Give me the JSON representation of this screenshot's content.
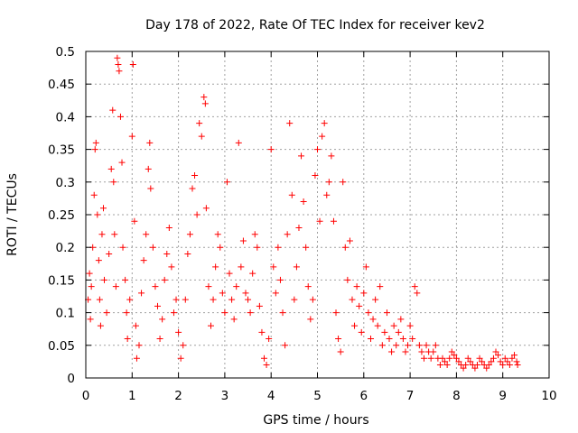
{
  "chart_data": {
    "type": "scatter",
    "title": "Day 178 of 2022, Rate Of TEC Index for receiver kev2",
    "xlabel": "GPS time / hours",
    "ylabel": "ROTI / TECUs",
    "xlim": [
      0,
      10
    ],
    "ylim": [
      0,
      0.5
    ],
    "x_ticks": [
      0,
      1,
      2,
      3,
      4,
      5,
      6,
      7,
      8,
      9,
      10
    ],
    "y_ticks": [
      0,
      0.05,
      0.1,
      0.15,
      0.2,
      0.25,
      0.3,
      0.35,
      0.4,
      0.45,
      0.5
    ],
    "x_tick_labels": [
      "0",
      "1",
      "2",
      "3",
      "4",
      "5",
      "6",
      "7",
      "8",
      "9",
      "10"
    ],
    "y_tick_labels": [
      "0",
      "0.05",
      "0.1",
      "0.15",
      "0.2",
      "0.25",
      "0.3",
      "0.35",
      "0.4",
      "0.45",
      "0.5"
    ],
    "grid": true,
    "marker": "plus",
    "color": "#ff0000",
    "series": [
      {
        "name": "kev2",
        "points": [
          [
            0.05,
            0.12
          ],
          [
            0.08,
            0.16
          ],
          [
            0.1,
            0.09
          ],
          [
            0.12,
            0.14
          ],
          [
            0.15,
            0.2
          ],
          [
            0.18,
            0.28
          ],
          [
            0.2,
            0.35
          ],
          [
            0.22,
            0.36
          ],
          [
            0.25,
            0.25
          ],
          [
            0.28,
            0.18
          ],
          [
            0.3,
            0.12
          ],
          [
            0.32,
            0.08
          ],
          [
            0.35,
            0.22
          ],
          [
            0.38,
            0.26
          ],
          [
            0.4,
            0.15
          ],
          [
            0.45,
            0.1
          ],
          [
            0.5,
            0.19
          ],
          [
            0.55,
            0.32
          ],
          [
            0.58,
            0.41
          ],
          [
            0.6,
            0.3
          ],
          [
            0.62,
            0.22
          ],
          [
            0.65,
            0.14
          ],
          [
            0.68,
            0.49
          ],
          [
            0.7,
            0.48
          ],
          [
            0.72,
            0.47
          ],
          [
            0.75,
            0.4
          ],
          [
            0.78,
            0.33
          ],
          [
            0.8,
            0.2
          ],
          [
            0.85,
            0.15
          ],
          [
            0.88,
            0.1
          ],
          [
            0.9,
            0.06
          ],
          [
            0.95,
            0.12
          ],
          [
            1.0,
            0.37
          ],
          [
            1.02,
            0.48
          ],
          [
            1.05,
            0.24
          ],
          [
            1.08,
            0.08
          ],
          [
            1.1,
            0.03
          ],
          [
            1.15,
            0.05
          ],
          [
            1.2,
            0.13
          ],
          [
            1.25,
            0.18
          ],
          [
            1.3,
            0.22
          ],
          [
            1.35,
            0.32
          ],
          [
            1.38,
            0.36
          ],
          [
            1.4,
            0.29
          ],
          [
            1.45,
            0.2
          ],
          [
            1.5,
            0.14
          ],
          [
            1.55,
            0.11
          ],
          [
            1.6,
            0.06
          ],
          [
            1.65,
            0.09
          ],
          [
            1.7,
            0.15
          ],
          [
            1.75,
            0.19
          ],
          [
            1.8,
            0.23
          ],
          [
            1.85,
            0.17
          ],
          [
            1.9,
            0.1
          ],
          [
            1.95,
            0.12
          ],
          [
            2.0,
            0.07
          ],
          [
            2.05,
            0.03
          ],
          [
            2.1,
            0.05
          ],
          [
            2.15,
            0.12
          ],
          [
            2.2,
            0.19
          ],
          [
            2.25,
            0.22
          ],
          [
            2.3,
            0.29
          ],
          [
            2.35,
            0.31
          ],
          [
            2.4,
            0.25
          ],
          [
            2.45,
            0.39
          ],
          [
            2.5,
            0.37
          ],
          [
            2.55,
            0.43
          ],
          [
            2.58,
            0.42
          ],
          [
            2.6,
            0.26
          ],
          [
            2.65,
            0.14
          ],
          [
            2.7,
            0.08
          ],
          [
            2.75,
            0.12
          ],
          [
            2.8,
            0.17
          ],
          [
            2.85,
            0.22
          ],
          [
            2.9,
            0.2
          ],
          [
            2.95,
            0.13
          ],
          [
            3.0,
            0.1
          ],
          [
            3.05,
            0.3
          ],
          [
            3.1,
            0.16
          ],
          [
            3.15,
            0.12
          ],
          [
            3.2,
            0.09
          ],
          [
            3.25,
            0.14
          ],
          [
            3.3,
            0.36
          ],
          [
            3.35,
            0.17
          ],
          [
            3.4,
            0.21
          ],
          [
            3.45,
            0.13
          ],
          [
            3.5,
            0.12
          ],
          [
            3.55,
            0.1
          ],
          [
            3.6,
            0.16
          ],
          [
            3.65,
            0.22
          ],
          [
            3.7,
            0.2
          ],
          [
            3.75,
            0.11
          ],
          [
            3.8,
            0.07
          ],
          [
            3.85,
            0.03
          ],
          [
            3.9,
            0.02
          ],
          [
            3.95,
            0.06
          ],
          [
            4.0,
            0.35
          ],
          [
            4.05,
            0.17
          ],
          [
            4.1,
            0.13
          ],
          [
            4.15,
            0.2
          ],
          [
            4.2,
            0.15
          ],
          [
            4.25,
            0.1
          ],
          [
            4.3,
            0.05
          ],
          [
            4.35,
            0.22
          ],
          [
            4.4,
            0.39
          ],
          [
            4.45,
            0.28
          ],
          [
            4.5,
            0.12
          ],
          [
            4.55,
            0.17
          ],
          [
            4.6,
            0.23
          ],
          [
            4.65,
            0.34
          ],
          [
            4.7,
            0.27
          ],
          [
            4.75,
            0.2
          ],
          [
            4.8,
            0.14
          ],
          [
            4.85,
            0.09
          ],
          [
            4.9,
            0.12
          ],
          [
            4.95,
            0.31
          ],
          [
            5.0,
            0.35
          ],
          [
            5.05,
            0.24
          ],
          [
            5.1,
            0.37
          ],
          [
            5.15,
            0.39
          ],
          [
            5.2,
            0.28
          ],
          [
            5.25,
            0.3
          ],
          [
            5.3,
            0.34
          ],
          [
            5.35,
            0.24
          ],
          [
            5.4,
            0.1
          ],
          [
            5.45,
            0.06
          ],
          [
            5.5,
            0.04
          ],
          [
            5.55,
            0.3
          ],
          [
            5.6,
            0.2
          ],
          [
            5.65,
            0.15
          ],
          [
            5.7,
            0.21
          ],
          [
            5.75,
            0.12
          ],
          [
            5.8,
            0.08
          ],
          [
            5.85,
            0.14
          ],
          [
            5.9,
            0.11
          ],
          [
            5.95,
            0.07
          ],
          [
            6.0,
            0.13
          ],
          [
            6.05,
            0.17
          ],
          [
            6.1,
            0.1
          ],
          [
            6.15,
            0.06
          ],
          [
            6.2,
            0.09
          ],
          [
            6.25,
            0.12
          ],
          [
            6.3,
            0.08
          ],
          [
            6.35,
            0.14
          ],
          [
            6.4,
            0.05
          ],
          [
            6.45,
            0.07
          ],
          [
            6.5,
            0.1
          ],
          [
            6.55,
            0.06
          ],
          [
            6.6,
            0.04
          ],
          [
            6.65,
            0.08
          ],
          [
            6.7,
            0.05
          ],
          [
            6.75,
            0.07
          ],
          [
            6.8,
            0.09
          ],
          [
            6.85,
            0.06
          ],
          [
            6.9,
            0.04
          ],
          [
            6.95,
            0.05
          ],
          [
            7.0,
            0.08
          ],
          [
            7.05,
            0.06
          ],
          [
            7.1,
            0.14
          ],
          [
            7.15,
            0.13
          ],
          [
            7.2,
            0.05
          ],
          [
            7.25,
            0.04
          ],
          [
            7.3,
            0.03
          ],
          [
            7.35,
            0.05
          ],
          [
            7.4,
            0.04
          ],
          [
            7.45,
            0.03
          ],
          [
            7.5,
            0.04
          ],
          [
            7.55,
            0.05
          ],
          [
            7.6,
            0.03
          ],
          [
            7.65,
            0.02
          ],
          [
            7.7,
            0.03
          ],
          [
            7.75,
            0.025
          ],
          [
            7.8,
            0.02
          ],
          [
            7.85,
            0.03
          ],
          [
            7.9,
            0.04
          ],
          [
            7.95,
            0.035
          ],
          [
            8.0,
            0.03
          ],
          [
            8.05,
            0.025
          ],
          [
            8.1,
            0.02
          ],
          [
            8.15,
            0.015
          ],
          [
            8.2,
            0.02
          ],
          [
            8.25,
            0.03
          ],
          [
            8.3,
            0.025
          ],
          [
            8.35,
            0.02
          ],
          [
            8.4,
            0.015
          ],
          [
            8.45,
            0.02
          ],
          [
            8.5,
            0.03
          ],
          [
            8.55,
            0.025
          ],
          [
            8.6,
            0.02
          ],
          [
            8.65,
            0.015
          ],
          [
            8.7,
            0.02
          ],
          [
            8.75,
            0.025
          ],
          [
            8.8,
            0.03
          ],
          [
            8.85,
            0.04
          ],
          [
            8.9,
            0.035
          ],
          [
            8.95,
            0.025
          ],
          [
            9.0,
            0.02
          ],
          [
            9.05,
            0.03
          ],
          [
            9.1,
            0.025
          ],
          [
            9.15,
            0.02
          ],
          [
            9.2,
            0.03
          ],
          [
            9.25,
            0.035
          ],
          [
            9.3,
            0.025
          ],
          [
            9.32,
            0.02
          ]
        ]
      }
    ]
  }
}
